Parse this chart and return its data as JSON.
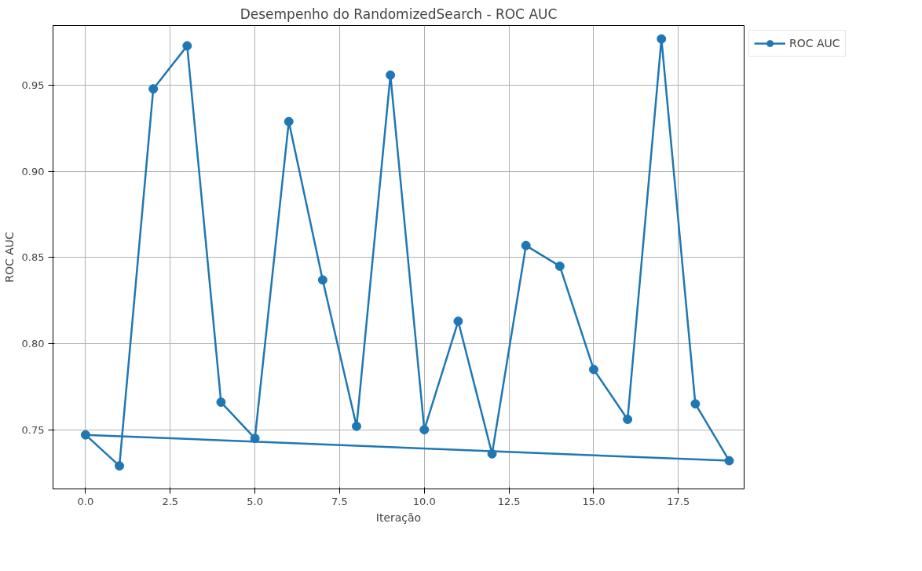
{
  "chart_data": {
    "type": "line",
    "title": "Desempenho do RandomizedSearch - ROC AUC",
    "xlabel": "Iteração",
    "ylabel": "ROC AUC",
    "x": [
      0,
      1,
      2,
      3,
      4,
      5,
      6,
      7,
      8,
      9,
      10,
      11,
      12,
      13,
      14,
      15,
      16,
      17,
      18,
      19
    ],
    "series": [
      {
        "name": "ROC AUC",
        "color": "#1f77b4",
        "values": [
          0.747,
          0.729,
          0.948,
          0.973,
          0.766,
          0.745,
          0.929,
          0.837,
          0.752,
          0.956,
          0.75,
          0.813,
          0.736,
          0.857,
          0.845,
          0.785,
          0.756,
          0.977,
          0.765,
          0.732
        ]
      },
      {
        "color": "#1f77b4",
        "x": [
          19,
          0
        ],
        "values": [
          0.732,
          0.747
        ],
        "marker": "none"
      }
    ],
    "xlim": [
      -0.96,
      19.44
    ],
    "ylim": [
      0.7156,
      0.9848
    ],
    "xticks": [
      {
        "value": 0,
        "label": "0.0"
      },
      {
        "value": 2.5,
        "label": "2.5"
      },
      {
        "value": 5,
        "label": "5.0"
      },
      {
        "value": 7.5,
        "label": "7.5"
      },
      {
        "value": 10,
        "label": "10.0"
      },
      {
        "value": 12.5,
        "label": "12.5"
      },
      {
        "value": 15,
        "label": "15.0"
      },
      {
        "value": 17.5,
        "label": "17.5"
      }
    ],
    "yticks": [
      {
        "value": 0.75,
        "label": "0.75"
      },
      {
        "value": 0.8,
        "label": "0.80"
      },
      {
        "value": 0.85,
        "label": "0.85"
      },
      {
        "value": 0.9,
        "label": "0.90"
      },
      {
        "value": 0.95,
        "label": "0.95"
      }
    ],
    "grid": true,
    "legend": "top right",
    "marker": "circle",
    "line_style": "solid"
  }
}
